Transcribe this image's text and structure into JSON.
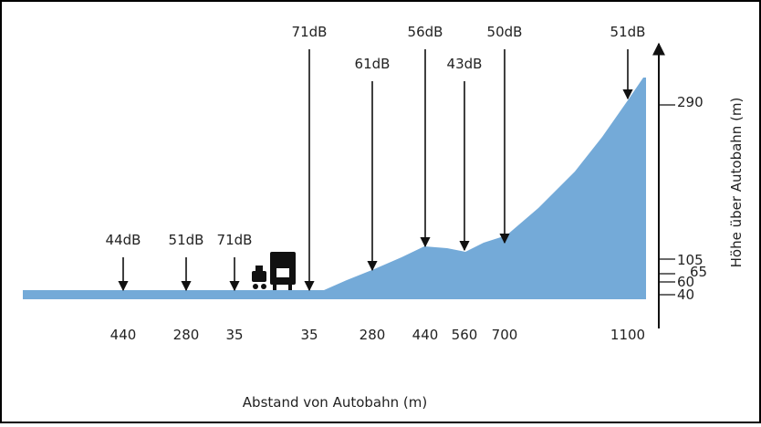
{
  "readings": [
    {
      "level": "44dB",
      "distance": "440"
    },
    {
      "level": "51dB",
      "distance": "280"
    },
    {
      "level": "71dB",
      "distance": "35"
    },
    {
      "level": "71dB",
      "distance": "35"
    },
    {
      "level": "61dB",
      "distance": "280"
    },
    {
      "level": "56dB",
      "distance": "440"
    },
    {
      "level": "43dB",
      "distance": "560"
    },
    {
      "level": "50dB",
      "distance": "700"
    },
    {
      "level": "51dB",
      "distance": "1100"
    }
  ],
  "x_axis_title": "Abstand von Autobahn (m)",
  "height_axis": {
    "title": "Höhe über Autobahn (m)",
    "ticks": [
      "290",
      "105",
      "65",
      "60",
      "40"
    ]
  }
}
